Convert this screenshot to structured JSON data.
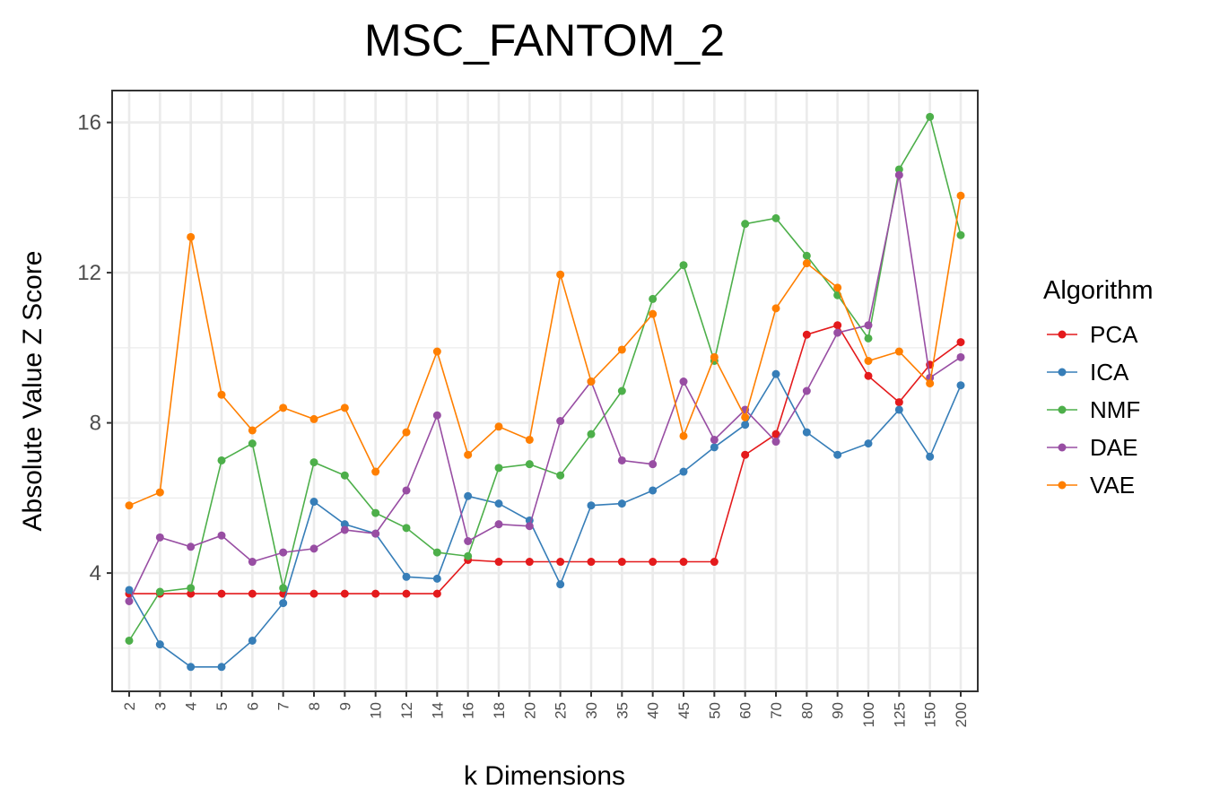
{
  "chart_data": {
    "type": "line",
    "title": "MSC_FANTOM_2",
    "xlabel": "k Dimensions",
    "ylabel": "Absolute Value Z Score",
    "categories": [
      "2",
      "3",
      "4",
      "5",
      "6",
      "7",
      "8",
      "9",
      "10",
      "12",
      "14",
      "16",
      "18",
      "20",
      "25",
      "30",
      "35",
      "40",
      "45",
      "50",
      "60",
      "70",
      "80",
      "90",
      "100",
      "125",
      "150",
      "200"
    ],
    "yticks": [
      4,
      8,
      12,
      16
    ],
    "ylim": [
      0.85,
      16.85
    ],
    "grid": true,
    "legend": {
      "title": "Algorithm",
      "position": "right"
    },
    "series": [
      {
        "name": "PCA",
        "color": "#E41A1C",
        "values": [
          3.45,
          3.45,
          3.45,
          3.45,
          3.45,
          3.45,
          3.45,
          3.45,
          3.45,
          3.45,
          3.45,
          4.35,
          4.3,
          4.3,
          4.3,
          4.3,
          4.3,
          4.3,
          4.3,
          4.3,
          7.15,
          7.7,
          10.35,
          10.6,
          9.25,
          8.55,
          9.55,
          10.15
        ]
      },
      {
        "name": "ICA",
        "color": "#377EB8",
        "values": [
          3.55,
          2.1,
          1.5,
          1.5,
          2.2,
          3.2,
          5.9,
          5.3,
          5.05,
          3.9,
          3.85,
          6.05,
          5.85,
          5.4,
          3.7,
          5.8,
          5.85,
          6.2,
          6.7,
          7.35,
          7.95,
          9.3,
          7.75,
          7.15,
          7.45,
          8.35,
          7.1,
          9.0
        ]
      },
      {
        "name": "NMF",
        "color": "#4DAF4A",
        "values": [
          2.2,
          3.5,
          3.6,
          7.0,
          7.45,
          3.6,
          6.95,
          6.6,
          5.6,
          5.2,
          4.55,
          4.45,
          6.8,
          6.9,
          6.6,
          7.7,
          8.85,
          11.3,
          12.2,
          9.65,
          13.3,
          13.45,
          12.45,
          11.4,
          10.25,
          14.75,
          16.15,
          13.0
        ]
      },
      {
        "name": "DAE",
        "color": "#984EA3",
        "values": [
          3.25,
          4.95,
          4.7,
          5.0,
          4.3,
          4.55,
          4.65,
          5.15,
          5.05,
          6.2,
          8.2,
          4.85,
          5.3,
          5.25,
          8.05,
          9.1,
          7.0,
          6.9,
          9.1,
          7.55,
          8.35,
          7.5,
          8.85,
          10.4,
          10.6,
          14.6,
          9.2,
          9.75
        ]
      },
      {
        "name": "VAE",
        "color": "#FF7F00",
        "values": [
          5.8,
          6.15,
          12.95,
          8.75,
          7.8,
          8.4,
          8.1,
          8.4,
          6.7,
          7.75,
          9.9,
          7.15,
          7.9,
          7.55,
          11.95,
          9.1,
          9.95,
          10.9,
          7.65,
          9.75,
          8.15,
          11.05,
          12.25,
          11.6,
          9.65,
          9.9,
          9.05,
          14.05
        ]
      }
    ]
  }
}
